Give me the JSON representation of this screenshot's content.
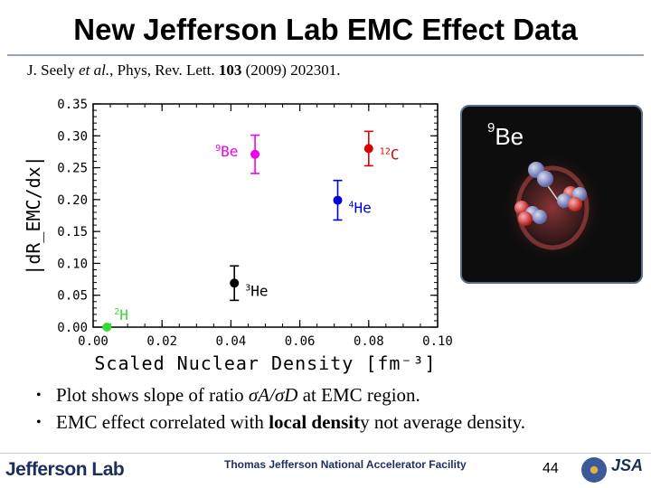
{
  "slide": {
    "title": "New Jefferson Lab EMC Effect Data",
    "citation": {
      "authors": "J. Seely",
      "etal": "et al.",
      "journal": ", Phys, Rev. Lett.",
      "volume": "103",
      "rest": "(2009) 202301."
    },
    "bullets": [
      {
        "prefix": "Plot shows slope of ratio ",
        "sigmaA": "σA/σD",
        "suffix": " at EMC region."
      },
      {
        "prefix": "EMC effect correlated with ",
        "bold": "local densit",
        "suffix": "y not average density."
      }
    ],
    "page_number": "44",
    "footer_text": "Thomas Jefferson National Accelerator Facility",
    "logo_text": "Jefferson Lab",
    "jsa_text": "JSA"
  },
  "inset": {
    "label_mass": "9",
    "label_element": "Be"
  },
  "chart_data": {
    "type": "scatter",
    "xlabel": "Scaled Nuclear Density [fm⁻³]",
    "ylabel": "|dR_EMC/dx|",
    "xlim": [
      0.0,
      0.1
    ],
    "ylim": [
      0.0,
      0.35
    ],
    "x_ticks": [
      "0.00",
      "0.02",
      "0.04",
      "0.06",
      "0.08",
      "0.10"
    ],
    "y_ticks": [
      "0.00",
      "0.05",
      "0.10",
      "0.15",
      "0.20",
      "0.25",
      "0.30",
      "0.35"
    ],
    "points": [
      {
        "name": "²H",
        "mass": "2",
        "element": "H",
        "x": 0.004,
        "y": 0.0,
        "err": 0.0,
        "color": "#33dd33"
      },
      {
        "name": "³He",
        "mass": "3",
        "element": "He",
        "x": 0.041,
        "y": 0.069,
        "err": 0.027,
        "color": "#000000"
      },
      {
        "name": "⁴He",
        "mass": "4",
        "element": "He",
        "x": 0.071,
        "y": 0.199,
        "err": 0.031,
        "color": "#0000dd"
      },
      {
        "name": "⁹Be",
        "mass": "9",
        "element": "Be",
        "x": 0.047,
        "y": 0.271,
        "err": 0.03,
        "color": "#ee00ee"
      },
      {
        "name": "¹²C",
        "mass": "12",
        "element": "C",
        "x": 0.08,
        "y": 0.28,
        "err": 0.027,
        "color": "#dd0000"
      }
    ]
  }
}
